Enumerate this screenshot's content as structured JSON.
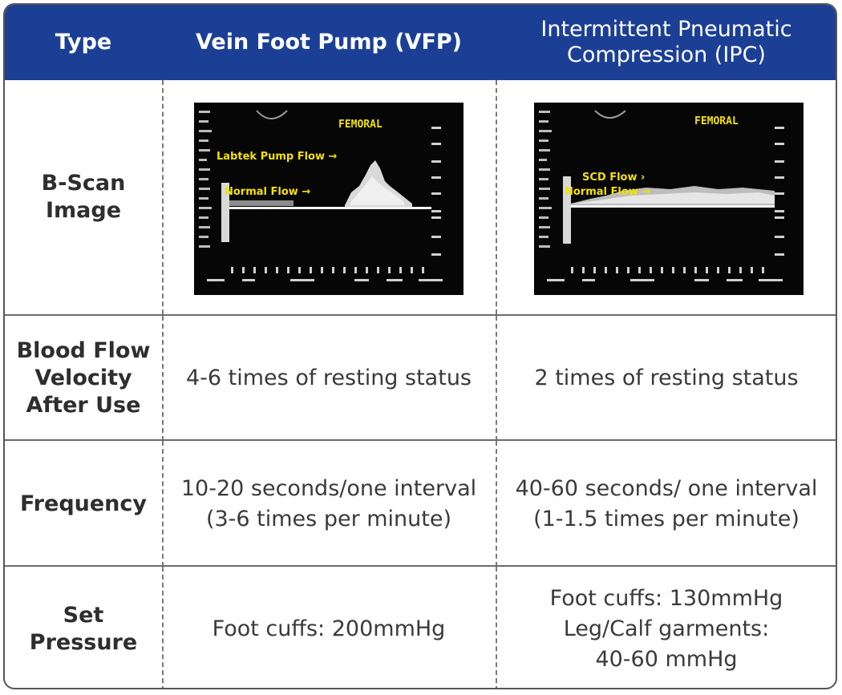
{
  "header": {
    "type_label": "Type",
    "col1_label": "Vein Foot Pump (VFP)",
    "col2_label": "Intermittent Pneumatic\nCompression (IPC)"
  },
  "rows": {
    "bscan": {
      "label": "B-Scan\nImage",
      "scan1": {
        "vessel": "FEMORAL",
        "pump_flow": "Labtek Pump Flow →",
        "normal_flow": "Normal Flow →"
      },
      "scan2": {
        "vessel": "FEMORAL",
        "scd_flow": "SCD Flow  ›",
        "normal_flow": "Normal Flow →"
      }
    },
    "velocity": {
      "label": "Blood Flow\nVelocity\nAfter Use",
      "col1": "4-6 times of resting status",
      "col2": "2 times of resting status"
    },
    "frequency": {
      "label": "Frequency",
      "col1": "10-20 seconds/one interval\n(3-6 times per minute)",
      "col2": "40-60 seconds/ one interval\n(1-1.5 times per minute)"
    },
    "pressure": {
      "label": "Set\nPressure",
      "col1": "Foot cuffs: 200mmHg",
      "col2": "Foot cuffs: 130mmHg\nLeg/Calf garments:\n40-60 mmHg"
    }
  },
  "colors": {
    "header_bg": "#1c3f96",
    "scan_label": "#f2e000"
  }
}
